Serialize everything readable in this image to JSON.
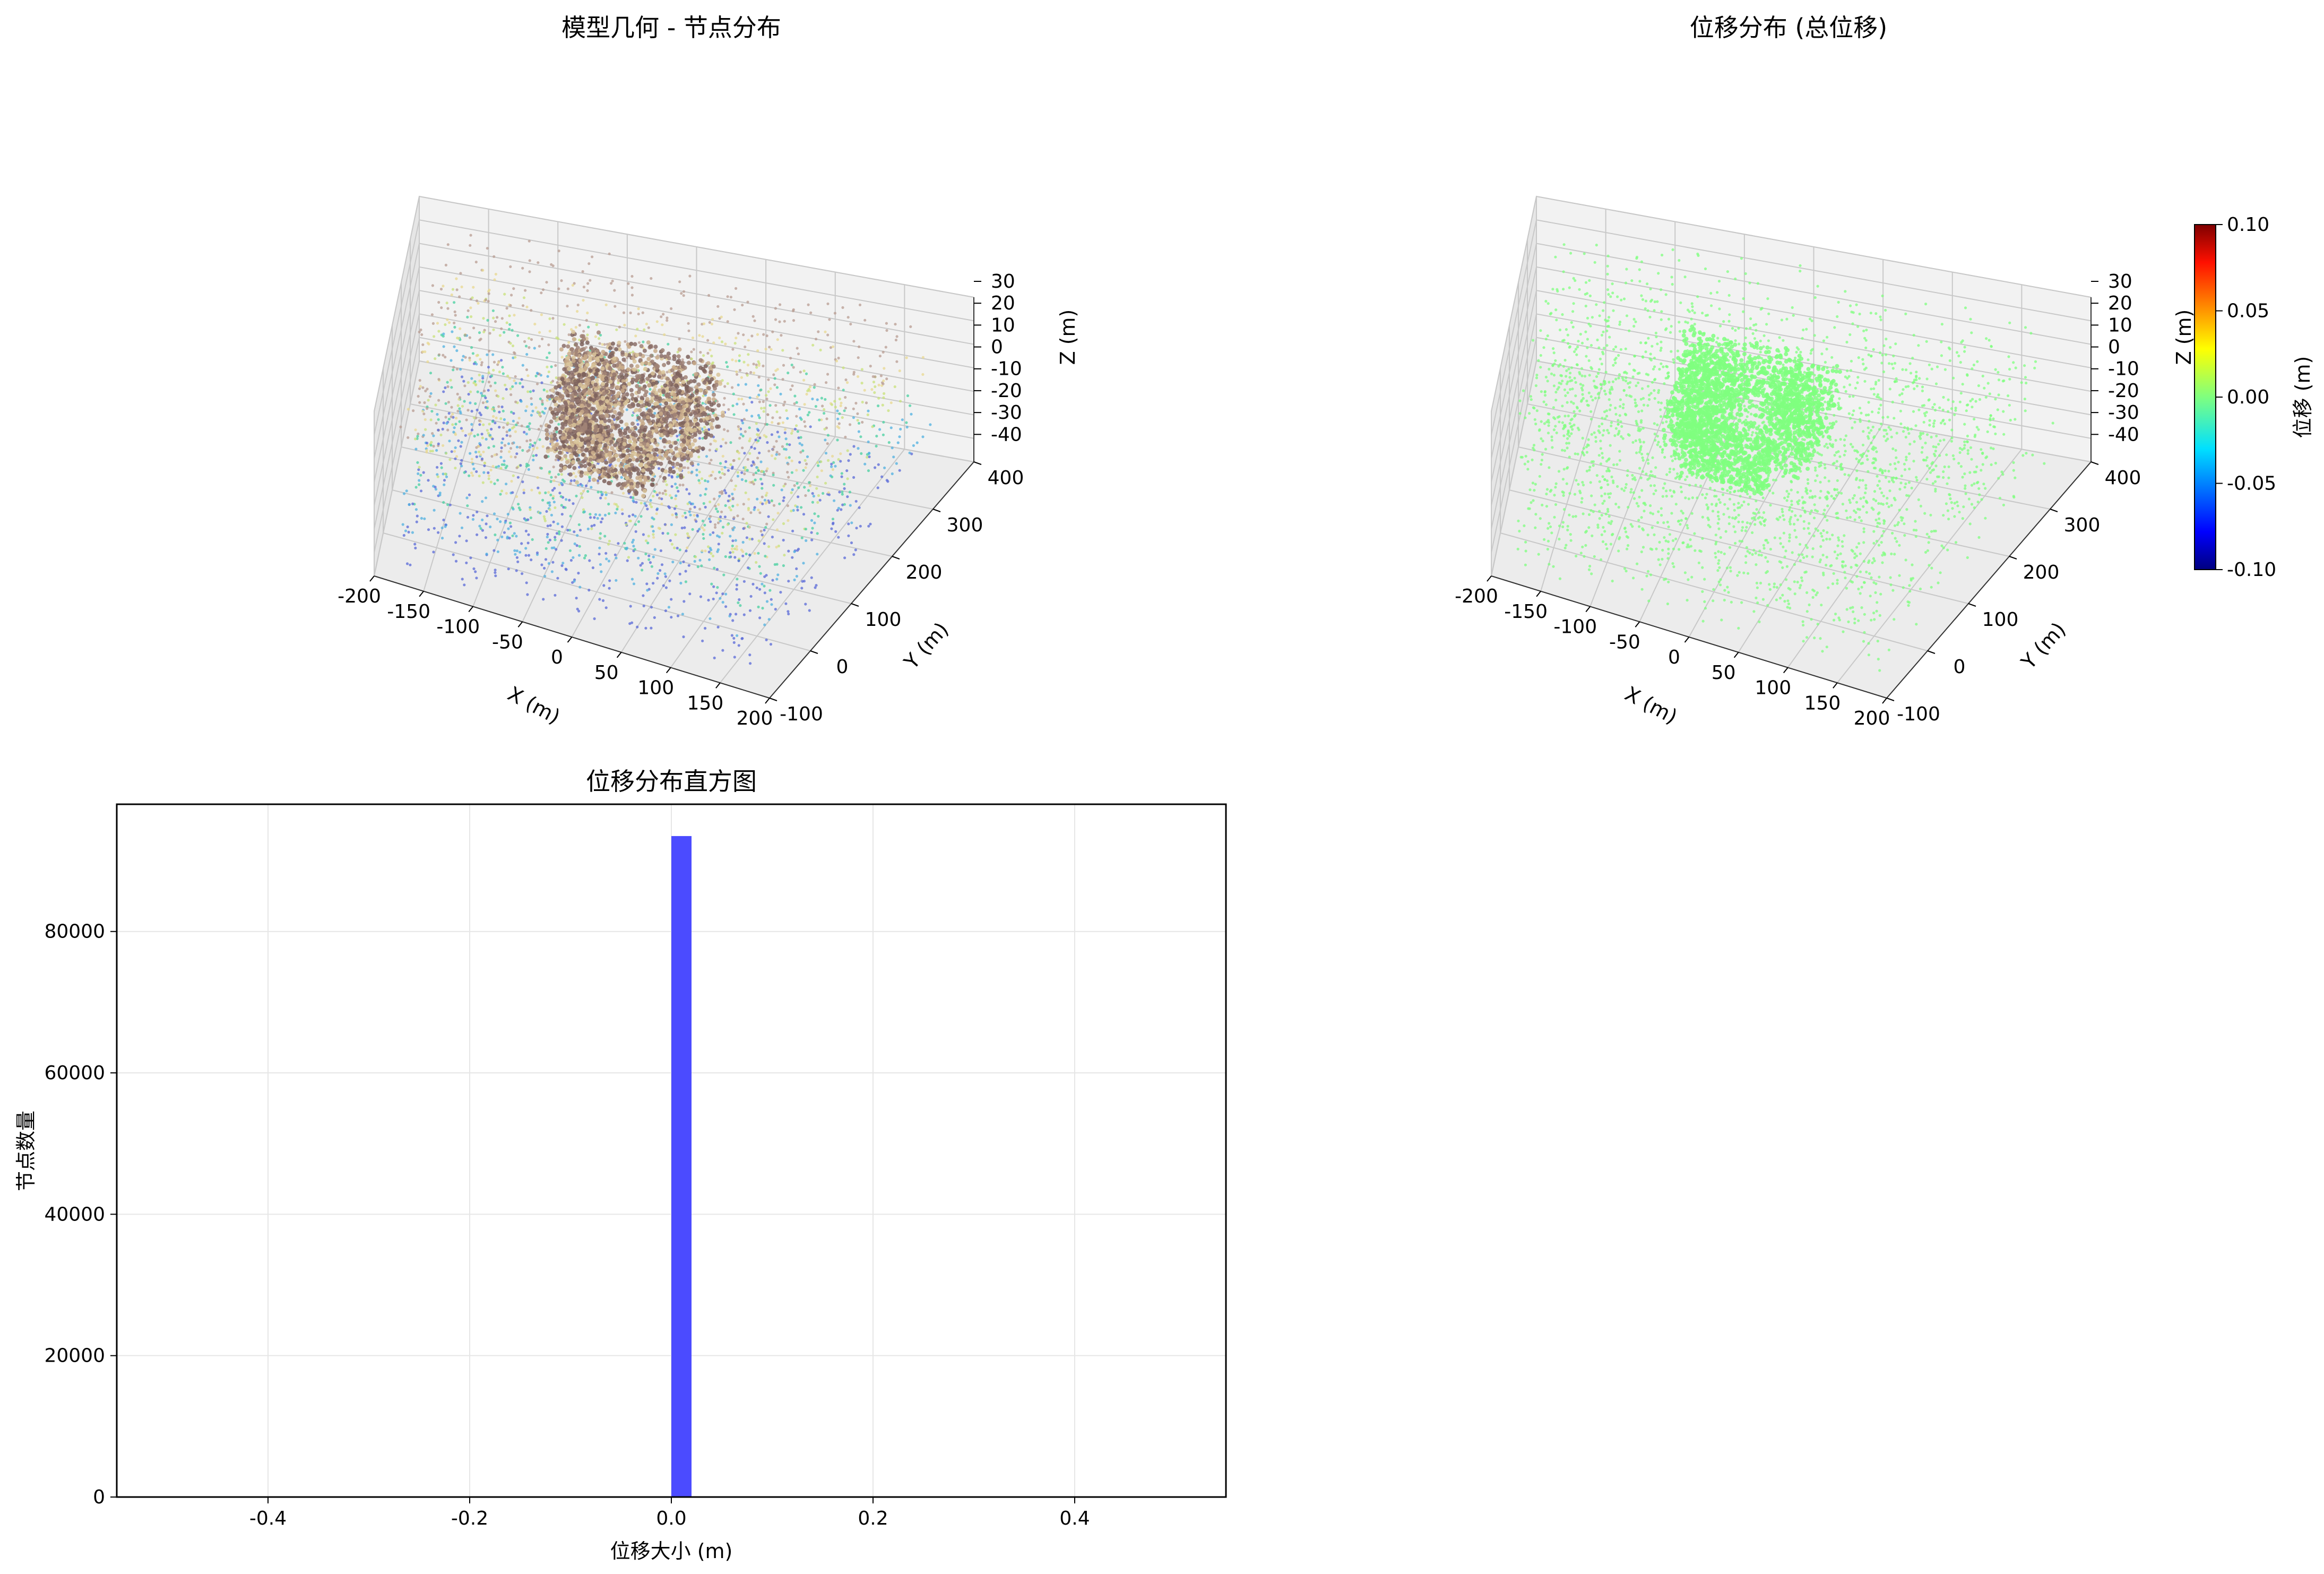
{
  "chart_data": [
    {
      "type": "scatter",
      "title": "模型几何 - 节点分布",
      "xlabel": "X (m)",
      "ylabel": "Y (m)",
      "zlabel": "Z (m)",
      "xlim": [
        -200,
        200
      ],
      "ylim": [
        -100,
        400
      ],
      "zlim": [
        -45,
        30
      ],
      "xticks": [
        "-200",
        "-150",
        "-100",
        "-50",
        "0",
        "50",
        "100",
        "150",
        "200"
      ],
      "yticks": [
        "-100",
        "0",
        "100",
        "200",
        "300",
        "400"
      ],
      "zticks": [
        "30",
        "20",
        "10",
        "0",
        "-10",
        "-20",
        "-30",
        "-40"
      ],
      "colormap": "terrain",
      "color_by": "Z",
      "grid": true
    },
    {
      "type": "scatter",
      "title": "位移分布 (总位移)",
      "xlabel": "X (m)",
      "ylabel": "Y (m)",
      "zlabel": "Z (m)",
      "xlim": [
        -200,
        200
      ],
      "ylim": [
        -100,
        400
      ],
      "zlim": [
        -45,
        30
      ],
      "xticks": [
        "-200",
        "-150",
        "-100",
        "-50",
        "0",
        "50",
        "100",
        "150",
        "200"
      ],
      "yticks": [
        "-100",
        "0",
        "100",
        "200",
        "300",
        "400"
      ],
      "zticks": [
        "30",
        "20",
        "10",
        "0",
        "-10",
        "-20",
        "-30",
        "-40"
      ],
      "colormap": "jet",
      "point_color": "#7fff7f",
      "displacement_all": 0.0,
      "grid": true,
      "colorbar": {
        "label": "位移 (m)",
        "range": [
          -0.1,
          0.1
        ],
        "ticks": [
          "0.10",
          "0.05",
          "0.00",
          "-0.05",
          "-0.10"
        ]
      }
    },
    {
      "type": "bar",
      "title": "位移分布直方图",
      "xlabel": "位移大小 (m)",
      "ylabel": "节点数量",
      "xlim": [
        -0.55,
        0.55
      ],
      "ylim": [
        0,
        98000
      ],
      "xticks": [
        "-0.4",
        "-0.2",
        "0.0",
        "0.2",
        "0.4"
      ],
      "yticks": [
        "0",
        "20000",
        "40000",
        "60000",
        "80000"
      ],
      "bins": [
        {
          "x0": 0.0,
          "x1": 0.02,
          "count": 93500
        }
      ],
      "bar_color": "#4b4bff",
      "grid": true
    }
  ]
}
